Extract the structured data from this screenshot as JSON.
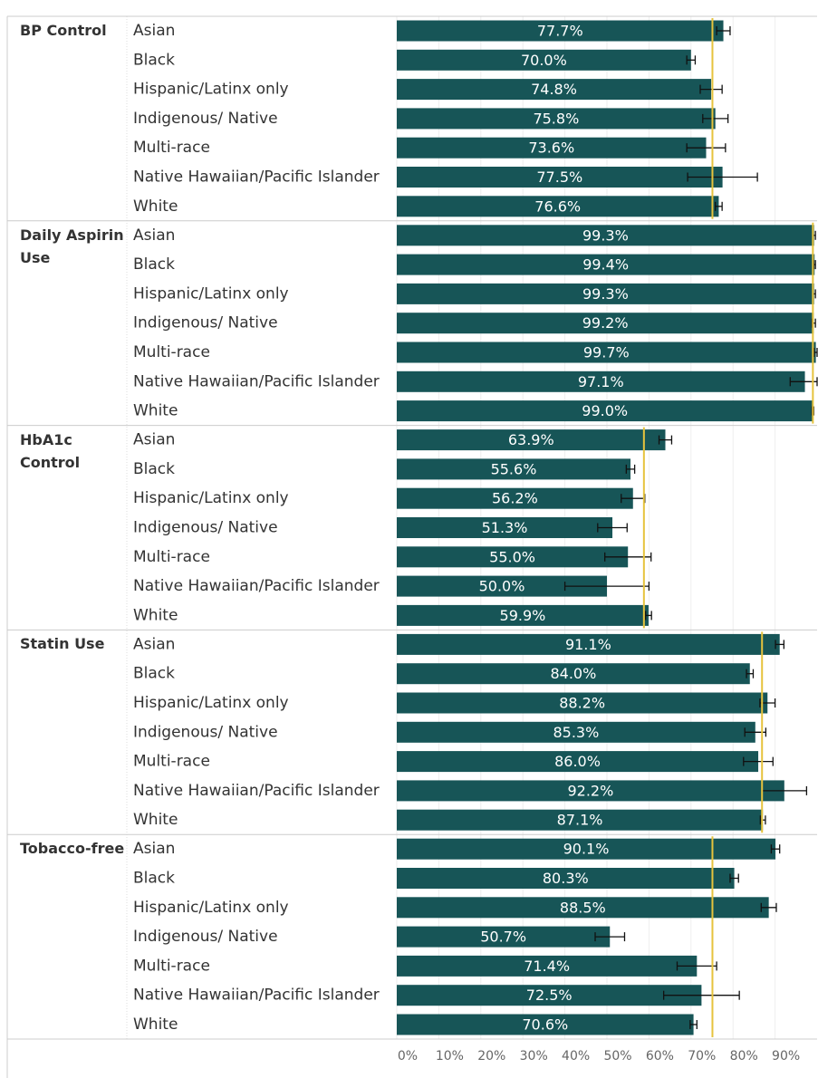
{
  "chart_data": {
    "type": "bar",
    "orientation": "horizontal",
    "color": "#175557",
    "reference_color": "#e6c33d",
    "grid": true,
    "xlim": [
      0,
      100
    ],
    "xticks": [
      {
        "value": 0,
        "label": "0%"
      },
      {
        "value": 10,
        "label": "10%"
      },
      {
        "value": 20,
        "label": "20%"
      },
      {
        "value": 30,
        "label": "30%"
      },
      {
        "value": 40,
        "label": "40%"
      },
      {
        "value": 50,
        "label": "50%"
      },
      {
        "value": 60,
        "label": "60%"
      },
      {
        "value": 70,
        "label": "70%"
      },
      {
        "value": 80,
        "label": "80%"
      },
      {
        "value": 90,
        "label": "90%"
      }
    ],
    "categories": [
      "Asian",
      "Black",
      "Hispanic/Latinx only",
      "Indigenous/ Native",
      "Multi-race",
      "Native Hawaiian/Pacific Islander",
      "White"
    ],
    "groups": [
      {
        "name": "BP Control",
        "reference": 75.1,
        "values": [
          77.7,
          70.0,
          74.8,
          75.8,
          73.6,
          77.5,
          76.6
        ],
        "value_labels": [
          "77.7%",
          "70.0%",
          "74.8%",
          "75.8%",
          "73.6%",
          "77.5%",
          "76.6%"
        ],
        "errors": [
          1.6,
          1.0,
          2.6,
          3.0,
          4.6,
          8.3,
          0.8
        ]
      },
      {
        "name": "Daily Aspirin Use",
        "reference": 99.0,
        "values": [
          99.3,
          99.4,
          99.3,
          99.2,
          99.7,
          97.1,
          99.0
        ],
        "value_labels": [
          "99.3%",
          "99.4%",
          "99.3%",
          "99.2%",
          "99.7%",
          "97.1%",
          "99.0%"
        ],
        "errors": [
          0.3,
          0.2,
          0.3,
          0.4,
          0.4,
          3.5,
          0.2
        ]
      },
      {
        "name": "HbA1c Control",
        "reference": 58.8,
        "values": [
          63.9,
          55.6,
          56.2,
          51.3,
          55.0,
          50.0,
          59.9
        ],
        "value_labels": [
          "63.9%",
          "55.6%",
          "56.2%",
          "51.3%",
          "55.0%",
          "50.0%",
          "59.9%"
        ],
        "errors": [
          1.5,
          1.0,
          2.8,
          3.5,
          5.5,
          10.0,
          0.7
        ]
      },
      {
        "name": "Statin Use",
        "reference": 86.9,
        "values": [
          91.1,
          84.0,
          88.2,
          85.3,
          86.0,
          92.2,
          87.1
        ],
        "value_labels": [
          "91.1%",
          "84.0%",
          "88.2%",
          "85.3%",
          "86.0%",
          "92.2%",
          "87.1%"
        ],
        "errors": [
          1.0,
          0.8,
          1.8,
          2.5,
          3.5,
          5.3,
          0.6
        ]
      },
      {
        "name": "Tobacco-free",
        "reference": 75.1,
        "values": [
          90.1,
          80.3,
          88.5,
          50.7,
          71.4,
          72.5,
          70.6
        ],
        "value_labels": [
          "90.1%",
          "80.3%",
          "88.5%",
          "50.7%",
          "71.4%",
          "72.5%",
          "70.6%"
        ],
        "errors": [
          1.0,
          1.0,
          1.8,
          3.5,
          4.7,
          9.0,
          0.8
        ]
      }
    ]
  }
}
